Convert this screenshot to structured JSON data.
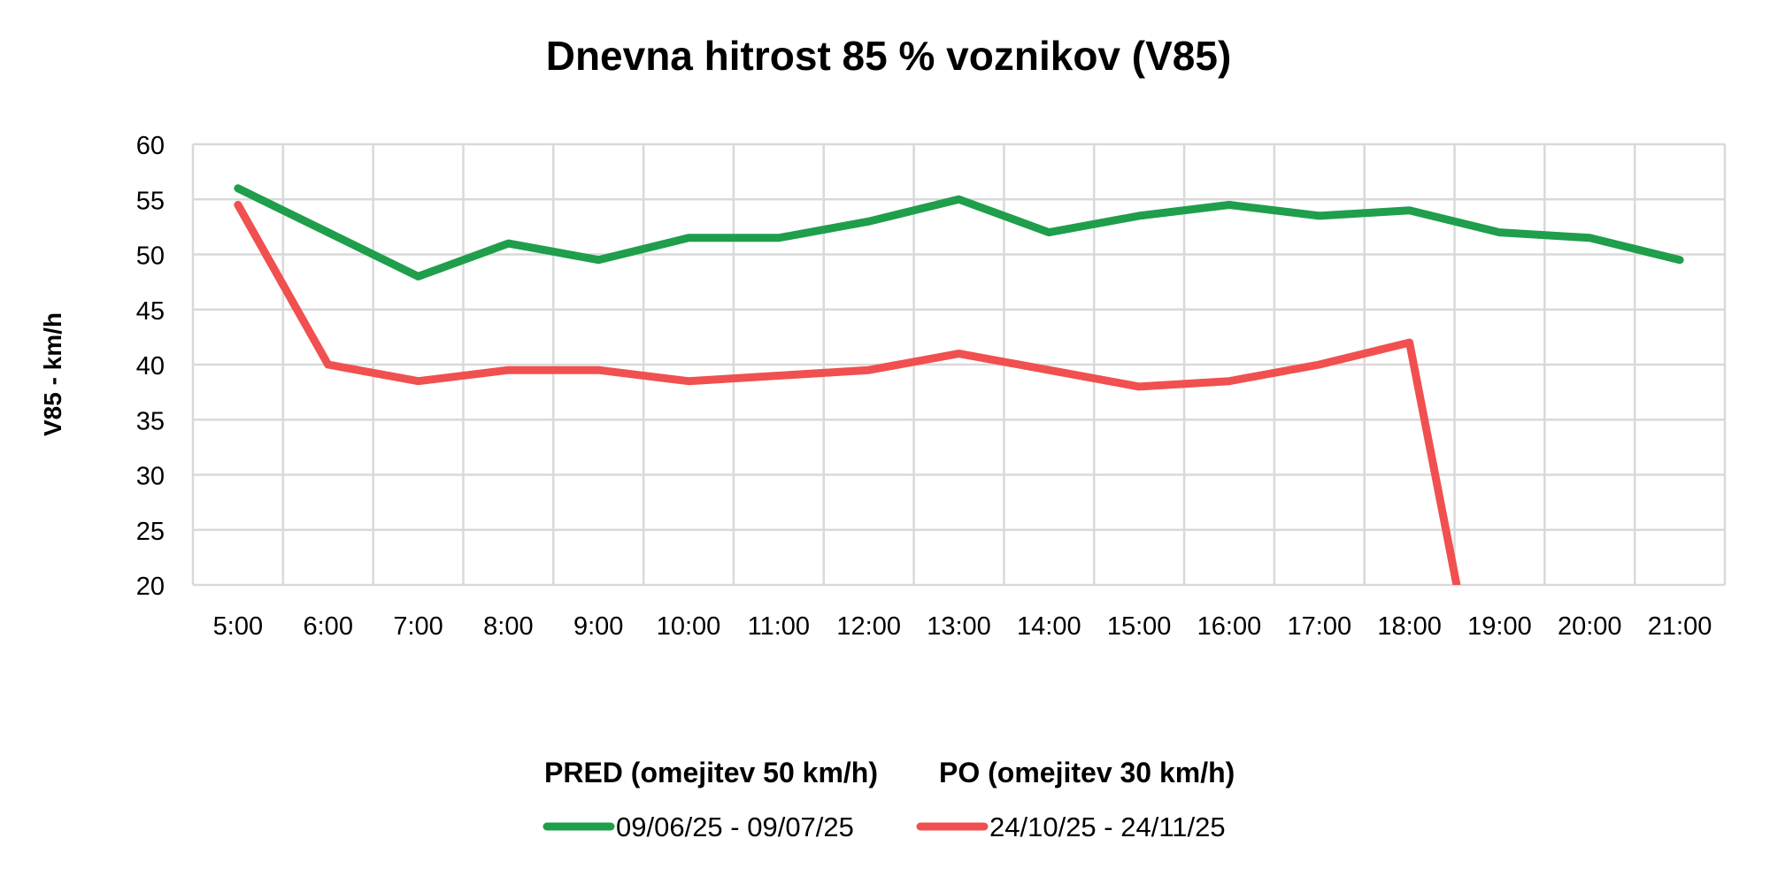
{
  "chart_data": {
    "type": "line",
    "title": "Dnevna hitrost 85 % voznikov  (V85)",
    "xlabel": "",
    "ylabel": "V85 - km/h",
    "ylim": [
      20,
      60
    ],
    "yticks": [
      "60",
      "55",
      "50",
      "45",
      "40",
      "35",
      "30",
      "25",
      "20"
    ],
    "grid": true,
    "legend_position": "bottom",
    "categories": [
      "5:00",
      "6:00",
      "7:00",
      "8:00",
      "9:00",
      "10:00",
      "11:00",
      "12:00",
      "13:00",
      "14:00",
      "15:00",
      "16:00",
      "17:00",
      "18:00",
      "19:00",
      "20:00",
      "21:00"
    ],
    "series": [
      {
        "name": "09/06/25 - 09/07/25",
        "group": "PRED (omejitev 50 km/h)",
        "color": "#1f9e4b",
        "values": [
          56,
          52,
          48,
          51,
          49.5,
          51.5,
          51.5,
          53,
          55,
          52,
          53.5,
          54.5,
          53.5,
          54,
          52,
          51.5,
          49.5
        ]
      },
      {
        "name": "24/10/25 - 24/11/25",
        "group": "PO (omejitev 30 km/h)",
        "color": "#f0504f",
        "values": [
          54.5,
          40,
          38.5,
          39.5,
          39.5,
          38.5,
          39,
          39.5,
          41,
          39.5,
          38,
          38.5,
          40,
          42,
          0,
          null,
          null
        ]
      }
    ]
  }
}
